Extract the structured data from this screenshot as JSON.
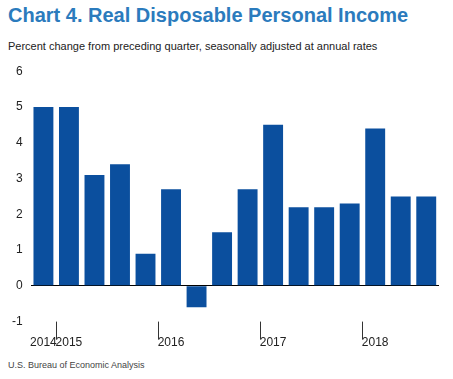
{
  "chart_data": {
    "type": "bar",
    "title": "Chart 4. Real Disposable Personal Income",
    "subtitle": "Percent change from preceding quarter, seasonally adjusted at annual rates",
    "source": "U.S. Bureau of Economic Analysis",
    "categories": [
      "2014",
      "2015",
      null,
      null,
      null,
      "2016",
      null,
      null,
      null,
      "2017",
      null,
      null,
      null,
      "2018",
      null,
      null
    ],
    "values": [
      5.0,
      5.0,
      3.1,
      3.4,
      0.9,
      2.7,
      -0.6,
      1.5,
      2.7,
      4.5,
      2.2,
      2.2,
      2.3,
      4.4,
      2.5,
      2.5
    ],
    "color": "#0b4f9e",
    "ylim": [
      -1,
      6
    ],
    "yticks": [
      -1,
      0,
      1,
      2,
      3,
      4,
      5,
      6
    ],
    "grid": false
  }
}
